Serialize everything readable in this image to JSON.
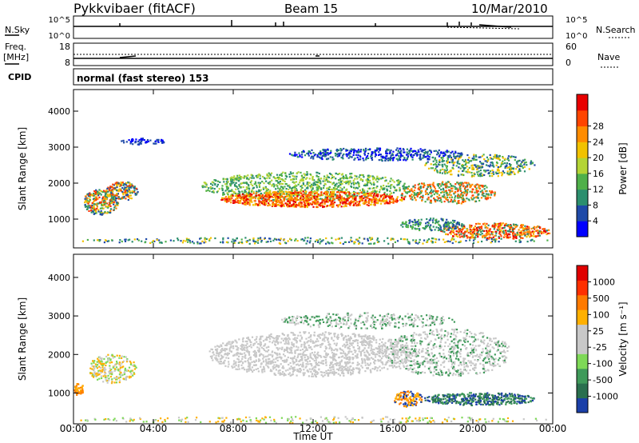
{
  "header": {
    "title": "Pykkvibaer (fitACF)",
    "beam": "Beam 15",
    "date": "10/Mar/2010"
  },
  "summary_panels": {
    "nsky_label": "N.Sky",
    "nsky_ticks": [
      "10^5",
      "10^0"
    ],
    "nsearch_label": "N.Search",
    "nsearch_ticks": [
      "10^5",
      "10^0"
    ],
    "freq_label_1": "Freq.",
    "freq_label_2": "[MHz]",
    "freq_ticks": [
      "18",
      "8"
    ],
    "nave_label": "Nave",
    "nave_ticks": [
      "60",
      "0"
    ],
    "cpid_label": "CPID",
    "cpid_value": "normal (fast stereo) 153"
  },
  "chart_data": [
    {
      "type": "heatmap",
      "name": "power-panel",
      "ylabel": "Slant Range [km]",
      "xlabel": "Time UT",
      "y_ticks": [
        1000,
        2000,
        3000,
        4000
      ],
      "ylim": [
        200,
        4600
      ],
      "x_ticks": [
        "00:00",
        "04:00",
        "08:00",
        "12:00",
        "16:00",
        "20:00",
        "00:00"
      ],
      "colorbar_label": "Power [dB]",
      "colorbar_ticks": [
        "4",
        "8",
        "12",
        "16",
        "20",
        "24",
        "28"
      ],
      "colorbar_colors": [
        "#0000ff",
        "#1f4aa8",
        "#2c8f6e",
        "#4fb04a",
        "#b4d435",
        "#f2c200",
        "#ff8c00",
        "#ff4500",
        "#e80000"
      ]
    },
    {
      "type": "heatmap",
      "name": "velocity-panel",
      "ylabel": "Slant Range [km]",
      "xlabel": "Time UT",
      "y_ticks": [
        1000,
        2000,
        3000,
        4000
      ],
      "ylim": [
        200,
        4600
      ],
      "x_ticks": [
        "00:00",
        "04:00",
        "08:00",
        "12:00",
        "16:00",
        "20:00",
        "00:00"
      ],
      "colorbar_label": "Velocity [m s⁻¹]",
      "colorbar_ticks": [
        "1000",
        "500",
        "100",
        "25",
        "-25",
        "-100",
        "-500",
        "-1000"
      ],
      "colorbar_colors": [
        "#1b3fa8",
        "#2a6f4e",
        "#3f9a5a",
        "#7ed957",
        "#c8c8c8",
        "#c8c8c8",
        "#ffb000",
        "#ff7a00",
        "#ff3000",
        "#e00000"
      ]
    }
  ],
  "footer": {
    "xlabel": "Time UT"
  }
}
